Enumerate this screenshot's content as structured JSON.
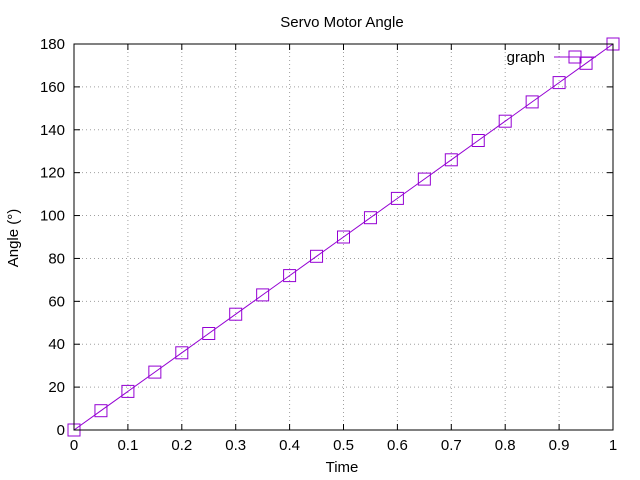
{
  "chart_data": {
    "type": "line",
    "title": "Servo Motor Angle",
    "xlabel": "Time",
    "ylabel": "Angle (°)",
    "xlim": [
      0,
      1
    ],
    "ylim": [
      0,
      180
    ],
    "x_ticks": [
      "0",
      "0.1",
      "0.2",
      "0.3",
      "0.4",
      "0.5",
      "0.6",
      "0.7",
      "0.8",
      "0.9",
      "1"
    ],
    "y_ticks": [
      "0",
      "20",
      "40",
      "60",
      "80",
      "100",
      "120",
      "140",
      "160",
      "180"
    ],
    "grid": true,
    "legend_position": "top-right",
    "series": [
      {
        "name": "graph",
        "color": "#9400d3",
        "marker": "open-square",
        "x": [
          0,
          0.05,
          0.1,
          0.15,
          0.2,
          0.25,
          0.3,
          0.35,
          0.4,
          0.45,
          0.5,
          0.55,
          0.6,
          0.65,
          0.7,
          0.75,
          0.8,
          0.85,
          0.9,
          0.95,
          1
        ],
        "y": [
          0,
          9,
          18,
          27,
          36,
          45,
          54,
          63,
          72,
          81,
          90,
          99,
          108,
          117,
          126,
          135,
          144,
          153,
          162,
          171,
          180
        ]
      }
    ]
  }
}
